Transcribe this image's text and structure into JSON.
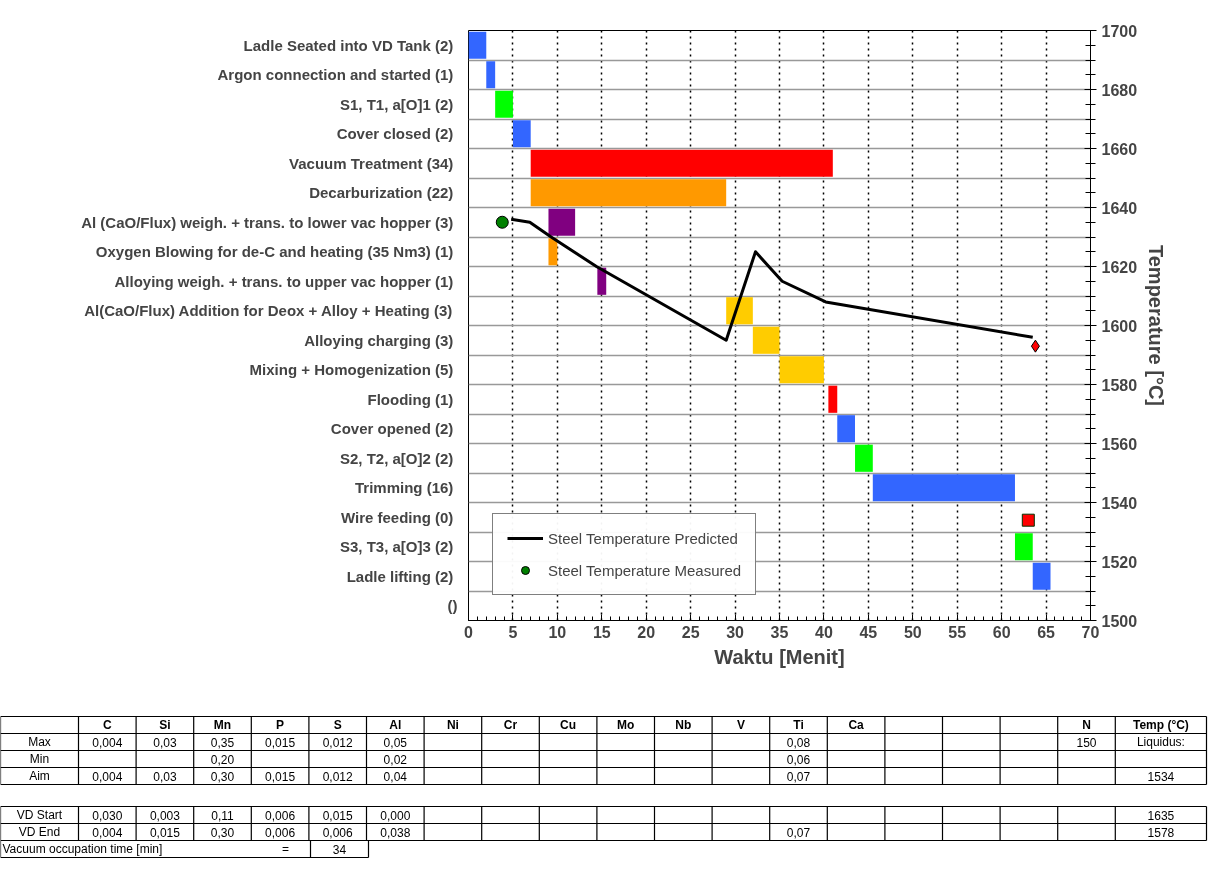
{
  "chart_data": [
    {
      "type": "bar",
      "orientation": "horizontal",
      "categories": [
        "Ladle Seated into VD Tank  (2)",
        "Argon connection and started  (1)",
        "S1, T1, a[O]1  (2)",
        "Cover closed  (2)",
        "Vacuum Treatment  (34)",
        "Decarburization  (22)",
        "Al (CaO/Flux) weigh. + trans. to lower vac hopper  (3)",
        "Oxygen Blowing for de-C and heating (35 Nm3)  (1)",
        "Alloying weigh. + trans. to upper vac hopper  (1)",
        "Al(CaO/Flux) Addition for Deox + Alloy + Heating  (3)",
        "Alloying charging  (3)",
        "Mixing + Homogenization  (5)",
        "Flooding  (1)",
        "Cover opened  (2)",
        "S2, T2, a[O]2  (2)",
        "Trimming  (16)",
        "Wire feeding  (0)",
        "S3, T3, a[O]3  (2)",
        "Ladle lifting  (2)",
        "()"
      ],
      "xlabel": "Waktu [Menit]",
      "xlim": [
        0,
        70
      ],
      "xticks": [
        0,
        5,
        10,
        15,
        20,
        25,
        30,
        35,
        40,
        45,
        50,
        55,
        60,
        65,
        70
      ],
      "grid": true,
      "values": [
        2,
        1,
        2,
        2,
        34,
        22,
        3,
        1,
        1,
        3,
        3,
        5,
        1,
        2,
        2,
        16,
        0,
        2,
        2,
        null
      ],
      "base": [
        0,
        2,
        3,
        5,
        7,
        7,
        9,
        9,
        14.5,
        29,
        32,
        35,
        40.5,
        41.5,
        43.5,
        45.5,
        null,
        61.5,
        63.5,
        null
      ],
      "colors": [
        "#3366ff",
        "#3366ff",
        "#00ff00",
        "#3366ff",
        "#ff0000",
        "#ff9900",
        "#800080",
        "#ff9900",
        "#800080",
        "#ffcc00",
        "#ffcc00",
        "#ffcc00",
        "#ff0000",
        "#3366ff",
        "#00ff00",
        "#3366ff",
        "#3366ff",
        "#00ff00",
        "#3366ff",
        null
      ]
    },
    {
      "type": "line",
      "ylabel": "Temperature [°C]",
      "xlim": [
        0,
        70
      ],
      "ylim": [
        1500,
        1700
      ],
      "yticks": [
        1500,
        1520,
        1540,
        1560,
        1580,
        1600,
        1620,
        1640,
        1660,
        1680,
        1700
      ],
      "tick_labels": "y",
      "legend": "bottom left",
      "series": [
        {
          "type": "line",
          "name": "Steel Temperature Predicted",
          "color": "#000000",
          "x": [
            4.8,
            6.9,
            9.3,
            14.4,
            29.0,
            32.3,
            35.3,
            40.2,
            63.5
          ],
          "values": [
            1636,
            1635,
            1630,
            1620,
            1595,
            1625,
            1615,
            1608,
            1596
          ]
        },
        {
          "type": "scatter",
          "name": "Steel Temperature Measured",
          "color": "#008000",
          "marker": "circle",
          "x": [
            3.8
          ],
          "values": [
            1635
          ]
        },
        {
          "type": "scatter",
          "color": "#ff0000",
          "marker": "diamond",
          "x": [
            63.8
          ],
          "values": [
            1593
          ]
        },
        {
          "type": "scatter",
          "color": "#ff0000",
          "marker": "square",
          "x": [
            63
          ],
          "values": [
            1534
          ]
        }
      ]
    },
    {
      "type": "other",
      "categories": [
        "C",
        "Si",
        "Mn",
        "P",
        "S",
        "Al",
        "Ni",
        "Cr",
        "Cu",
        "Mo",
        "Nb",
        "V",
        "Ti",
        "Ca",
        null,
        null,
        null,
        "N",
        "Temp (°C)"
      ],
      "y_categories": [
        "Max",
        "Min",
        "Aim",
        null,
        "VD Start",
        "VD End"
      ],
      "cell_labels": [
        [
          "0,004",
          "0,03",
          "0,35",
          "0,015",
          "0,012",
          "0,05",
          null,
          null,
          null,
          null,
          null,
          null,
          "0,08",
          null,
          null,
          null,
          null,
          "150",
          "Liquidus:"
        ],
        [
          null,
          null,
          "0,20",
          null,
          null,
          "0,02",
          null,
          null,
          null,
          null,
          null,
          null,
          "0,06",
          null,
          null,
          null,
          null,
          null,
          null
        ],
        [
          "0,004",
          "0,03",
          "0,30",
          "0,015",
          "0,012",
          "0,04",
          null,
          null,
          null,
          null,
          null,
          null,
          "0,07",
          null,
          null,
          null,
          null,
          null,
          "1534"
        ],
        [
          null,
          null,
          null,
          null,
          null,
          null,
          null,
          null,
          null,
          null,
          null,
          null,
          null,
          null,
          null,
          null,
          null,
          null,
          null
        ],
        [
          "0,030",
          "0,003",
          "0,11",
          "0,006",
          "0,015",
          "0,000",
          null,
          null,
          null,
          null,
          null,
          null,
          null,
          null,
          null,
          null,
          null,
          null,
          "1635"
        ],
        [
          "0,004",
          "0,015",
          "0,30",
          "0,006",
          "0,006",
          "0,038",
          null,
          null,
          null,
          null,
          null,
          null,
          "0,07",
          null,
          null,
          null,
          null,
          null,
          "1578"
        ]
      ],
      "annotations": [
        "Vacuum occupation time  [min]",
        "=",
        "34"
      ]
    }
  ]
}
